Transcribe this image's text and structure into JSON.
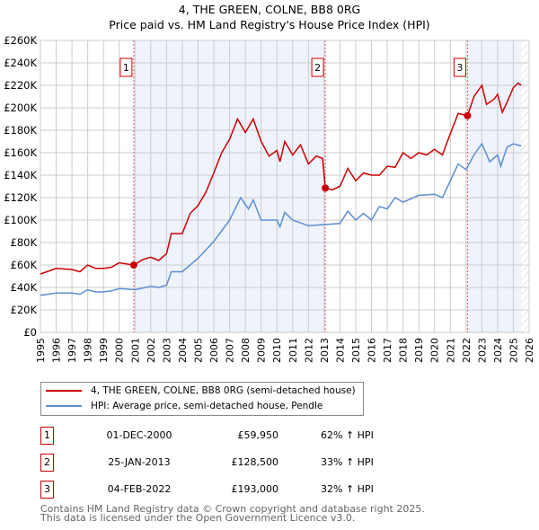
{
  "chart_data": {
    "type": "line",
    "title": "4, THE GREEN, COLNE, BB8 0RG",
    "subtitle": "Price paid vs. HM Land Registry's House Price Index (HPI)",
    "xlim": [
      1995,
      2026
    ],
    "ylim": [
      0,
      260000
    ],
    "x_ticks": [
      "1995",
      "1996",
      "1997",
      "1998",
      "1999",
      "2000",
      "2001",
      "2002",
      "2003",
      "2004",
      "2005",
      "2006",
      "2007",
      "2008",
      "2009",
      "2010",
      "2011",
      "2012",
      "2013",
      "2014",
      "2015",
      "2016",
      "2017",
      "2018",
      "2019",
      "2020",
      "2021",
      "2022",
      "2023",
      "2024",
      "2025",
      "2026"
    ],
    "y_ticks": [
      {
        "value": 0,
        "label": "£0"
      },
      {
        "value": 20000,
        "label": "£20K"
      },
      {
        "value": 40000,
        "label": "£40K"
      },
      {
        "value": 60000,
        "label": "£60K"
      },
      {
        "value": 80000,
        "label": "£80K"
      },
      {
        "value": 100000,
        "label": "£100K"
      },
      {
        "value": 120000,
        "label": "£120K"
      },
      {
        "value": 140000,
        "label": "£140K"
      },
      {
        "value": 160000,
        "label": "£160K"
      },
      {
        "value": 180000,
        "label": "£180K"
      },
      {
        "value": 200000,
        "label": "£200K"
      },
      {
        "value": 220000,
        "label": "£220K"
      },
      {
        "value": 240000,
        "label": "£240K"
      },
      {
        "value": 260000,
        "label": "£260K"
      }
    ],
    "grid": true,
    "legend_position": "below",
    "series": [
      {
        "name": "4, THE GREEN, COLNE, BB8 0RG (semi-detached house)",
        "color": "#cc0000",
        "x": [
          1995,
          1996,
          1997,
          1997.5,
          1998,
          1998.5,
          1999,
          1999.5,
          2000,
          2000.92,
          2001.5,
          2002,
          2002.5,
          2003,
          2003.3,
          2004,
          2004.5,
          2005,
          2005.5,
          2006,
          2006.5,
          2007,
          2007.5,
          2008,
          2008.5,
          2009,
          2009.5,
          2010,
          2010.2,
          2010.5,
          2011,
          2011.5,
          2012,
          2012.5,
          2012.9,
          2013.07,
          2013.5,
          2014,
          2014.5,
          2015,
          2015.5,
          2016,
          2016.5,
          2017,
          2017.5,
          2018,
          2018.5,
          2019,
          2019.5,
          2020,
          2020.5,
          2021,
          2021.5,
          2022.09,
          2022.5,
          2023,
          2023.3,
          2023.8,
          2024,
          2024.3,
          2024.6,
          2025,
          2025.3,
          2025.5
        ],
        "y": [
          52000,
          57000,
          56000,
          54000,
          60000,
          57000,
          57000,
          58000,
          62000,
          59950,
          65000,
          67000,
          64000,
          70000,
          88000,
          88000,
          106000,
          113000,
          125000,
          142000,
          160000,
          172000,
          190000,
          178000,
          190000,
          170000,
          157000,
          162000,
          152000,
          170000,
          158000,
          167000,
          150000,
          157000,
          155000,
          128500,
          127000,
          130000,
          146000,
          135000,
          142000,
          140000,
          140000,
          148000,
          147000,
          160000,
          155000,
          160000,
          158000,
          163000,
          158000,
          177000,
          195000,
          193000,
          210000,
          220000,
          203000,
          208000,
          212000,
          196000,
          205000,
          218000,
          222000,
          220000
        ]
      },
      {
        "name": "HPI: Average price, semi-detached house, Pendle",
        "color": "#5b8fd0",
        "x": [
          1995,
          1996,
          1997,
          1997.5,
          1998,
          1998.5,
          1999,
          1999.5,
          2000,
          2001,
          2002,
          2002.5,
          2003,
          2003.3,
          2004,
          2005,
          2006,
          2007,
          2007.7,
          2008.2,
          2008.5,
          2009,
          2010,
          2010.2,
          2010.5,
          2011,
          2012,
          2013,
          2014,
          2014.5,
          2015,
          2015.5,
          2016,
          2016.5,
          2017,
          2017.5,
          2018,
          2019,
          2020,
          2020.5,
          2021,
          2021.5,
          2022,
          2022.5,
          2023,
          2023.5,
          2024,
          2024.2,
          2024.6,
          2025,
          2025.5
        ],
        "y": [
          33000,
          35000,
          35000,
          34000,
          38000,
          36000,
          36000,
          37000,
          39000,
          38000,
          41000,
          40000,
          42000,
          54000,
          54000,
          66000,
          81000,
          100000,
          120000,
          110000,
          118000,
          100000,
          100000,
          94000,
          107000,
          100000,
          95000,
          96000,
          97000,
          108000,
          100000,
          106000,
          100000,
          112000,
          110000,
          120000,
          116000,
          122000,
          123000,
          120000,
          135000,
          150000,
          145000,
          158000,
          168000,
          152000,
          158000,
          148000,
          165000,
          168000,
          166000
        ]
      }
    ],
    "sales": [
      {
        "label": "1",
        "x": 2000.92,
        "y": 59950
      },
      {
        "label": "2",
        "x": 2013.07,
        "y": 128500
      },
      {
        "label": "3",
        "x": 2022.09,
        "y": 193000
      }
    ],
    "shaded_ranges": [
      [
        2000.92,
        2013.07
      ],
      [
        2022.09,
        2025.5
      ]
    ],
    "hatched_from": 2025.5
  },
  "legend": {
    "property": "4, THE GREEN, COLNE, BB8 0RG (semi-detached house)",
    "hpi": "HPI: Average price, semi-detached house, Pendle"
  },
  "transactions": [
    {
      "num": "1",
      "date": "01-DEC-2000",
      "price": "£59,950",
      "hpi": "62% ↑ HPI"
    },
    {
      "num": "2",
      "date": "25-JAN-2013",
      "price": "£128,500",
      "hpi": "33% ↑ HPI"
    },
    {
      "num": "3",
      "date": "04-FEB-2022",
      "price": "£193,000",
      "hpi": "32% ↑ HPI"
    }
  ],
  "footer": {
    "line1": "Contains HM Land Registry data © Crown copyright and database right 2025.",
    "line2": "This data is licensed under the Open Government Licence v3.0."
  }
}
